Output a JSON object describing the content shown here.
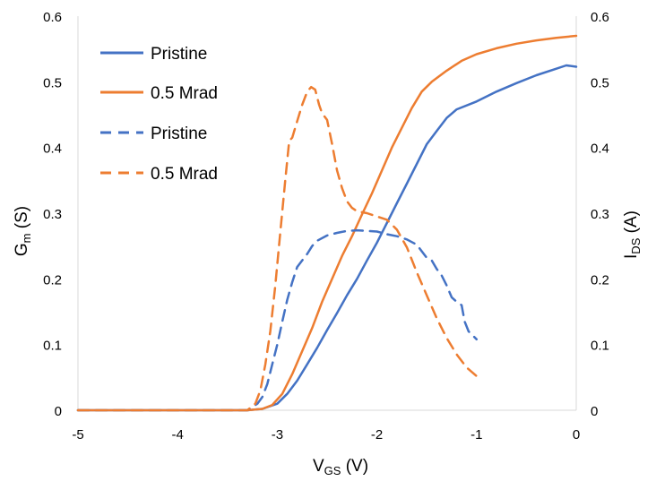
{
  "chart_data": {
    "type": "line",
    "xlabel": {
      "main": "V",
      "sub": "GS",
      "unit": " (V)"
    },
    "ylabel_left": {
      "main": "G",
      "sub": "m",
      "unit": " (S)"
    },
    "ylabel_right": {
      "main": "I",
      "sub": "DS",
      "unit": " (A)"
    },
    "xlim": [
      -5,
      0
    ],
    "ylim_left": [
      0,
      0.6
    ],
    "ylim_right": [
      0,
      0.6
    ],
    "x_ticks": [
      "-5",
      "-4",
      "-3",
      "-2",
      "-1",
      "0"
    ],
    "y_ticks_left": [
      "0",
      "0.1",
      "0.2",
      "0.3",
      "0.4",
      "0.5",
      "0.6"
    ],
    "y_ticks_right": [
      "0",
      "0.1",
      "0.2",
      "0.3",
      "0.4",
      "0.5",
      "0.6"
    ],
    "grid": false,
    "legend_position": "top-left",
    "series": [
      {
        "name": "Pristine",
        "axis": "right",
        "style": "solid",
        "color": "#4472C4",
        "points": [
          [
            -5,
            0
          ],
          [
            -4,
            0
          ],
          [
            -3.3,
            0
          ],
          [
            -3.15,
            0.002
          ],
          [
            -3.0,
            0.01
          ],
          [
            -2.9,
            0.025
          ],
          [
            -2.8,
            0.045
          ],
          [
            -2.7,
            0.07
          ],
          [
            -2.6,
            0.095
          ],
          [
            -2.5,
            0.122
          ],
          [
            -2.4,
            0.148
          ],
          [
            -2.3,
            0.175
          ],
          [
            -2.2,
            0.2
          ],
          [
            -2.1,
            0.228
          ],
          [
            -2.0,
            0.255
          ],
          [
            -1.9,
            0.285
          ],
          [
            -1.8,
            0.315
          ],
          [
            -1.7,
            0.345
          ],
          [
            -1.6,
            0.375
          ],
          [
            -1.5,
            0.405
          ],
          [
            -1.4,
            0.425
          ],
          [
            -1.3,
            0.445
          ],
          [
            -1.2,
            0.458
          ],
          [
            -1.0,
            0.47
          ],
          [
            -0.8,
            0.485
          ],
          [
            -0.6,
            0.498
          ],
          [
            -0.4,
            0.51
          ],
          [
            -0.2,
            0.52
          ],
          [
            -0.1,
            0.525
          ],
          [
            0,
            0.523
          ]
        ]
      },
      {
        "name": "0.5 Mrad",
        "axis": "right",
        "style": "solid",
        "color": "#ED7D31",
        "points": [
          [
            -5,
            0
          ],
          [
            -4,
            0
          ],
          [
            -3.3,
            0
          ],
          [
            -3.15,
            0.002
          ],
          [
            -3.05,
            0.008
          ],
          [
            -2.95,
            0.025
          ],
          [
            -2.85,
            0.055
          ],
          [
            -2.75,
            0.09
          ],
          [
            -2.65,
            0.125
          ],
          [
            -2.55,
            0.165
          ],
          [
            -2.45,
            0.2
          ],
          [
            -2.35,
            0.235
          ],
          [
            -2.25,
            0.265
          ],
          [
            -2.15,
            0.298
          ],
          [
            -2.05,
            0.33
          ],
          [
            -1.95,
            0.365
          ],
          [
            -1.85,
            0.4
          ],
          [
            -1.75,
            0.43
          ],
          [
            -1.65,
            0.46
          ],
          [
            -1.55,
            0.485
          ],
          [
            -1.45,
            0.5
          ],
          [
            -1.3,
            0.517
          ],
          [
            -1.15,
            0.532
          ],
          [
            -1.0,
            0.542
          ],
          [
            -0.8,
            0.551
          ],
          [
            -0.6,
            0.558
          ],
          [
            -0.4,
            0.563
          ],
          [
            -0.2,
            0.567
          ],
          [
            0,
            0.57
          ]
        ]
      },
      {
        "name": "Pristine",
        "axis": "left",
        "style": "dashed",
        "color": "#4472C4",
        "points": [
          [
            -5,
            0
          ],
          [
            -4,
            0
          ],
          [
            -3.3,
            0
          ],
          [
            -3.2,
            0.01
          ],
          [
            -3.15,
            0.02
          ],
          [
            -3.1,
            0.04
          ],
          [
            -3.05,
            0.07
          ],
          [
            -3.0,
            0.1
          ],
          [
            -2.95,
            0.135
          ],
          [
            -2.9,
            0.168
          ],
          [
            -2.85,
            0.195
          ],
          [
            -2.8,
            0.218
          ],
          [
            -2.75,
            0.228
          ],
          [
            -2.7,
            0.238
          ],
          [
            -2.65,
            0.25
          ],
          [
            -2.6,
            0.258
          ],
          [
            -2.5,
            0.266
          ],
          [
            -2.4,
            0.27
          ],
          [
            -2.3,
            0.273
          ],
          [
            -2.2,
            0.274
          ],
          [
            -2.1,
            0.273
          ],
          [
            -2.0,
            0.272
          ],
          [
            -1.9,
            0.268
          ],
          [
            -1.8,
            0.265
          ],
          [
            -1.7,
            0.26
          ],
          [
            -1.6,
            0.252
          ],
          [
            -1.55,
            0.242
          ],
          [
            -1.5,
            0.232
          ],
          [
            -1.45,
            0.228
          ],
          [
            -1.4,
            0.215
          ],
          [
            -1.35,
            0.205
          ],
          [
            -1.3,
            0.19
          ],
          [
            -1.25,
            0.172
          ],
          [
            -1.2,
            0.165
          ],
          [
            -1.15,
            0.16
          ],
          [
            -1.12,
            0.135
          ],
          [
            -1.08,
            0.12
          ],
          [
            -1.0,
            0.108
          ]
        ]
      },
      {
        "name": "0.5 Mrad",
        "axis": "left",
        "style": "dashed",
        "color": "#ED7D31",
        "points": [
          [
            -5,
            0
          ],
          [
            -4,
            0
          ],
          [
            -3.3,
            0
          ],
          [
            -3.22,
            0.01
          ],
          [
            -3.17,
            0.03
          ],
          [
            -3.12,
            0.07
          ],
          [
            -3.07,
            0.12
          ],
          [
            -3.02,
            0.19
          ],
          [
            -2.97,
            0.27
          ],
          [
            -2.92,
            0.35
          ],
          [
            -2.88,
            0.41
          ],
          [
            -2.85,
            0.415
          ],
          [
            -2.8,
            0.44
          ],
          [
            -2.75,
            0.465
          ],
          [
            -2.7,
            0.485
          ],
          [
            -2.66,
            0.492
          ],
          [
            -2.62,
            0.488
          ],
          [
            -2.58,
            0.465
          ],
          [
            -2.55,
            0.452
          ],
          [
            -2.5,
            0.442
          ],
          [
            -2.45,
            0.405
          ],
          [
            -2.4,
            0.365
          ],
          [
            -2.35,
            0.338
          ],
          [
            -2.3,
            0.318
          ],
          [
            -2.25,
            0.308
          ],
          [
            -2.2,
            0.303
          ],
          [
            -2.1,
            0.3
          ],
          [
            -2.0,
            0.295
          ],
          [
            -1.9,
            0.29
          ],
          [
            -1.8,
            0.275
          ],
          [
            -1.7,
            0.248
          ],
          [
            -1.6,
            0.21
          ],
          [
            -1.5,
            0.175
          ],
          [
            -1.4,
            0.14
          ],
          [
            -1.3,
            0.11
          ],
          [
            -1.2,
            0.085
          ],
          [
            -1.1,
            0.065
          ],
          [
            -1.0,
            0.052
          ]
        ]
      }
    ]
  }
}
